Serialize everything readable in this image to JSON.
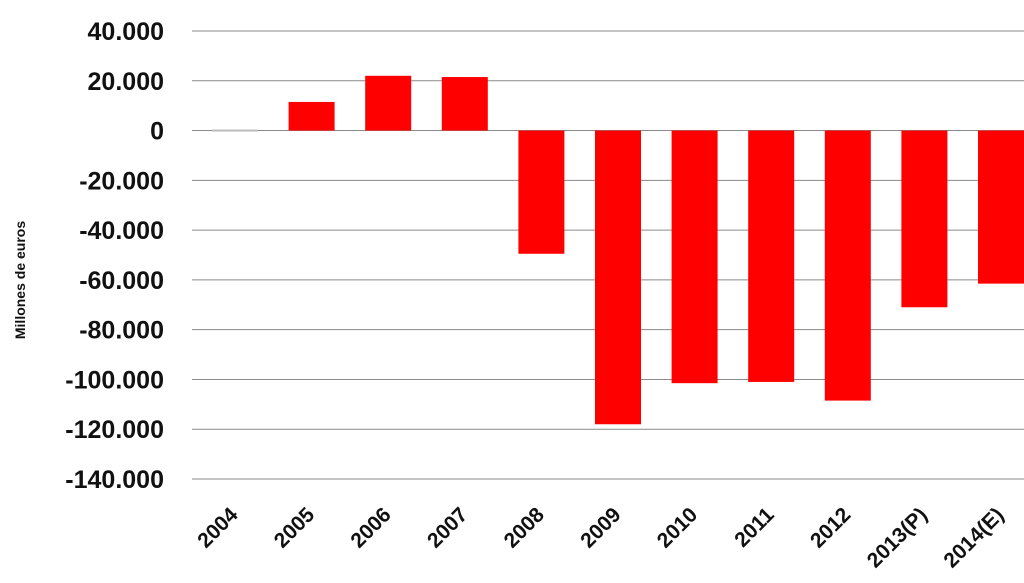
{
  "chart_data": {
    "type": "bar",
    "title": "",
    "xlabel": "",
    "ylabel": "Millones de euros",
    "categories": [
      "2004",
      "2005",
      "2006",
      "2007",
      "2008",
      "2009",
      "2010",
      "2011",
      "2012",
      "2013(P)",
      "2014(E)"
    ],
    "series": [
      {
        "values": [
          -500,
          11500,
          22000,
          21500,
          -49500,
          -118000,
          -101500,
          -101000,
          -108500,
          -71000,
          -61500
        ]
      }
    ],
    "ylim": [
      -140000,
      40000
    ],
    "yticks": [
      40000,
      20000,
      0,
      -20000,
      -40000,
      -60000,
      -80000,
      -100000,
      -120000,
      -140000
    ],
    "ytick_labels": [
      "40.000",
      "20.000",
      "0",
      "-20.000",
      "-40.000",
      "-60.000",
      "-80.000",
      "-100.000",
      "-120.000",
      "-140.000"
    ],
    "grid": true,
    "bar_color": "#ff0000",
    "zero_line_color": "#bbbbbb"
  }
}
